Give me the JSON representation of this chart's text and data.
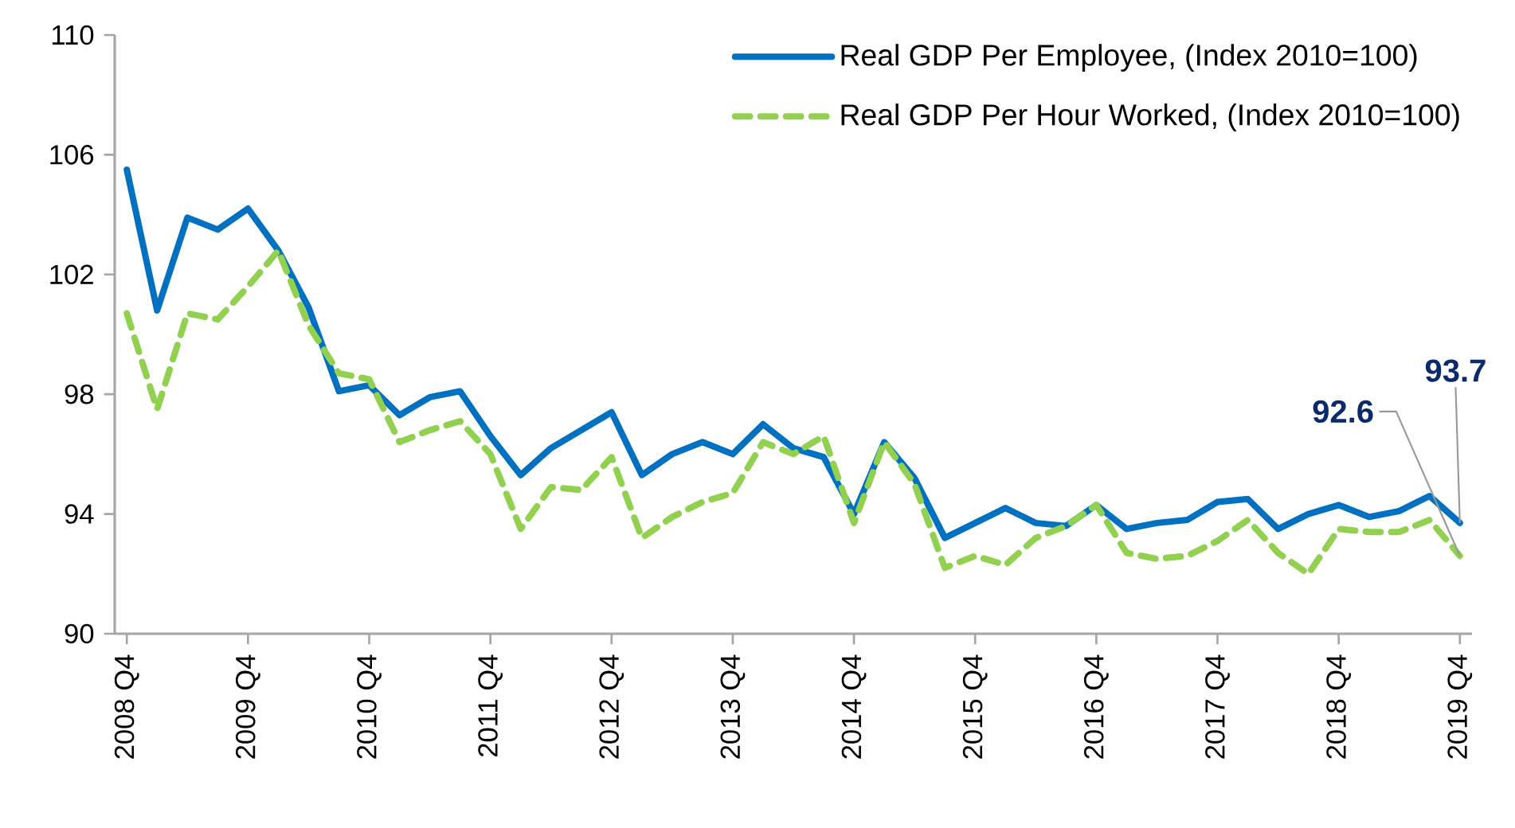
{
  "chart_data": {
    "type": "line",
    "categories": [
      "2008 Q4",
      null,
      null,
      null,
      "2009 Q4",
      null,
      null,
      null,
      "2010 Q4",
      null,
      null,
      null,
      "2011 Q4",
      null,
      null,
      null,
      "2012 Q4",
      null,
      null,
      null,
      "2013 Q4",
      null,
      null,
      null,
      "2014 Q4",
      null,
      null,
      null,
      "2015 Q4",
      null,
      null,
      null,
      "2016 Q4",
      null,
      null,
      null,
      "2017 Q4",
      null,
      null,
      null,
      "2018 Q4",
      null,
      null,
      null,
      "2019 Q4"
    ],
    "series": [
      {
        "name": "Real GDP Per Employee, (Index 2010=100)",
        "color": "#0070c0",
        "line_style": "solid",
        "values": [
          105.5,
          100.8,
          103.9,
          103.5,
          104.2,
          102.8,
          100.9,
          98.1,
          98.3,
          97.3,
          97.9,
          98.1,
          96.6,
          95.3,
          96.2,
          96.8,
          97.4,
          95.3,
          96.0,
          96.4,
          96.0,
          97.0,
          96.2,
          95.9,
          94.0,
          96.4,
          95.2,
          93.2,
          93.7,
          94.2,
          93.7,
          93.6,
          94.3,
          93.5,
          93.7,
          93.8,
          94.4,
          94.5,
          93.5,
          94.0,
          94.3,
          93.9,
          94.1,
          94.6,
          93.7
        ]
      },
      {
        "name": "Real GDP Per Hour Worked, (Index 2010=100)",
        "color": "#92d050",
        "line_style": "dashed",
        "values": [
          100.7,
          97.5,
          100.7,
          100.5,
          101.6,
          102.8,
          100.3,
          98.7,
          98.5,
          96.4,
          96.8,
          97.1,
          96.0,
          93.5,
          94.9,
          94.8,
          95.9,
          93.2,
          93.9,
          94.4,
          94.7,
          96.4,
          96.0,
          96.6,
          93.7,
          96.4,
          95.0,
          92.2,
          92.6,
          92.3,
          93.2,
          93.6,
          94.3,
          92.7,
          92.5,
          92.6,
          93.1,
          93.8,
          92.7,
          92.0,
          93.5,
          93.4,
          93.4,
          93.8,
          92.6
        ]
      }
    ],
    "ylim": [
      90,
      110
    ],
    "yticks": [
      90,
      94,
      98,
      102,
      106,
      110
    ],
    "grid": false,
    "legend": "top right",
    "marker": "none",
    "annotations": [
      {
        "text": "92.6",
        "x": "2019 Q4",
        "y": 92.6
      },
      {
        "text": "93.7",
        "x": "2019 Q4",
        "y": 93.7
      }
    ]
  }
}
